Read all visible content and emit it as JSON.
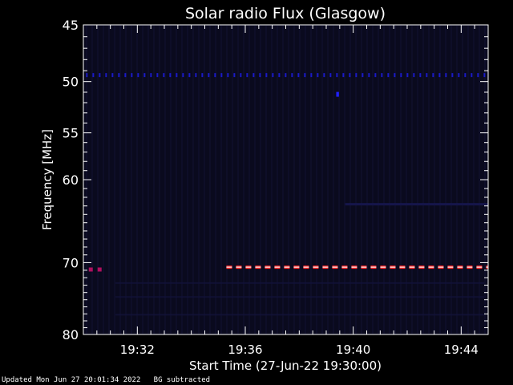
{
  "chart_data": {
    "type": "heatmap",
    "title": "Solar radio Flux (Glasgow)",
    "xlabel": "Start Time (27-Jun-22 19:30:00)",
    "ylabel": "Frequency [MHz]",
    "x_range_minutes_after_19_30": [
      0,
      15
    ],
    "y_range_mhz": [
      45,
      80
    ],
    "y_scale": "log",
    "x_ticks": [
      {
        "minute": 2,
        "label": "19:32"
      },
      {
        "minute": 6,
        "label": "19:36"
      },
      {
        "minute": 10,
        "label": "19:40"
      },
      {
        "minute": 14,
        "label": "19:44"
      }
    ],
    "y_ticks": [
      {
        "value": 45,
        "label": "45"
      },
      {
        "value": 50,
        "label": "50"
      },
      {
        "value": 55,
        "label": "55"
      },
      {
        "value": 60,
        "label": "60"
      },
      {
        "value": 70,
        "label": "70"
      },
      {
        "value": 80,
        "label": "80"
      }
    ],
    "background_color": "#0a0a1e",
    "features": [
      {
        "name": "dashed band",
        "freq_mhz": 49.4,
        "start_min": 0.1,
        "end_min": 15.0,
        "intensity": "low",
        "color": "#1a1ac8"
      },
      {
        "name": "spot",
        "freq_mhz": 51.2,
        "start_min": 9.4,
        "end_min": 9.5,
        "intensity": "low",
        "color": "#2020ff"
      },
      {
        "name": "faint band",
        "freq_mhz": 62.8,
        "start_min": 9.7,
        "end_min": 15.0,
        "intensity": "very low",
        "color": "#15154a"
      },
      {
        "name": "interference band",
        "freq_mhz": 70.6,
        "start_min": 5.3,
        "end_min": 15.0,
        "intensity": "high",
        "color": "#ff2020"
      },
      {
        "name": "early band",
        "freq_mhz": 70.9,
        "start_min": 0.2,
        "end_min": 0.8,
        "intensity": "medium",
        "color": "#b01060"
      }
    ]
  },
  "footer": {
    "updated": "Updated Mon Jun 27 20:01:34 2022",
    "note": "BG subtracted"
  }
}
